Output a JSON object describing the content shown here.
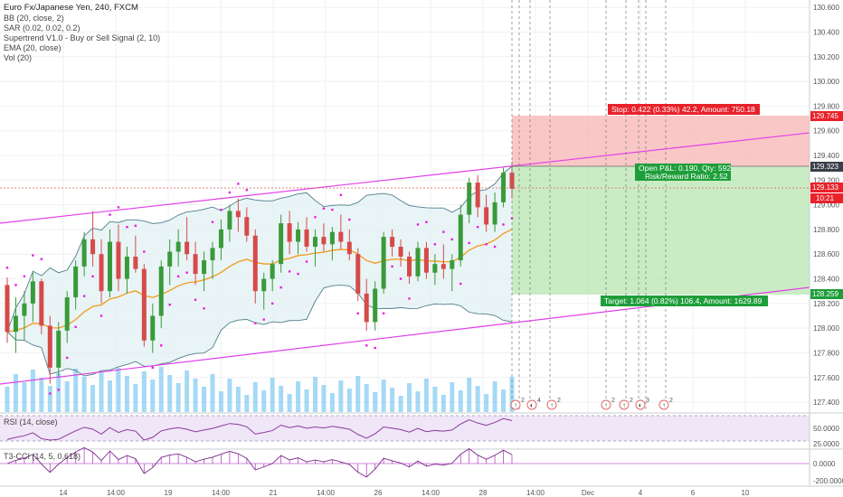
{
  "header": {
    "symbol_line": "Euro Fx/Japanese Yen, 240, FXCM",
    "indicators": [
      "BB (20, close, 2)",
      "SAR (0.02, 0.02, 0.2)",
      "Supertrend V1.0 - Buy or Sell Signal (2, 10)",
      "EMA (20, close)",
      "Vol (20)"
    ]
  },
  "colors": {
    "up": "#3a9a3a",
    "down": "#d64a4a",
    "bb": "#4f7f8a",
    "ema": "#f29a1a",
    "sar": "#e81ee0",
    "channel": "#e040e8",
    "stop_zone": "#f8b4b4",
    "target_zone": "#b8e6b0",
    "volume": "#8fd0f2",
    "grid": "#eef0f3"
  },
  "price_axis": {
    "ticks": [
      "130.600",
      "130.400",
      "130.200",
      "130.000",
      "129.800",
      "129.600",
      "129.400",
      "129.200",
      "129.000",
      "128.800",
      "128.600",
      "128.400",
      "128.200",
      "128.000",
      "127.800",
      "127.600",
      "127.400"
    ],
    "badges": {
      "stop": "129.745",
      "entry": "129.323",
      "last": "129.133",
      "timer": "10:21",
      "target": "128.259"
    }
  },
  "time_axis": [
    "14",
    "14:00",
    "19",
    "14:00",
    "21",
    "14:00",
    "26",
    "14:00",
    "28",
    "14:00",
    "Dec",
    "4",
    "6",
    "10"
  ],
  "position": {
    "stop_label": "Stop: 0.422 (0.33%) 42.2, Amount: 750.18",
    "open_pl_label": "Open P&L: 0.190, Qty: 592",
    "risk_reward_label": "Risk/Reward Ratio: 2.52",
    "target_label": "Target: 1.064 (0.82%) 106.4, Amount: 1629.89"
  },
  "events": [
    {
      "mark": "↑",
      "count": "2"
    },
    {
      "mark": "◐",
      "count": "4"
    },
    {
      "mark": "↑",
      "count": "2"
    },
    {
      "mark": "↑",
      "count": "2"
    },
    {
      "mark": "↑",
      "count": "2"
    },
    {
      "mark": "◐",
      "count": "3"
    },
    {
      "mark": "↑",
      "count": "2"
    }
  ],
  "rsi": {
    "label": "RSI (14, close)",
    "ticks": [
      "50.0000",
      "25.0000"
    ]
  },
  "cci": {
    "label": "T3-CCI (14, 5, 0.618)",
    "ticks": [
      "0.0000",
      "-200.0000"
    ]
  },
  "chart_data": {
    "type": "candlestick",
    "symbol": "Euro Fx/Japanese Yen",
    "interval": "240",
    "ylim": [
      127.32,
      130.66
    ],
    "ohlc": [
      [
        128.35,
        128.41,
        127.88,
        127.97
      ],
      [
        127.97,
        128.25,
        127.8,
        128.1
      ],
      [
        128.1,
        128.3,
        127.9,
        128.2
      ],
      [
        128.2,
        128.45,
        128.05,
        128.38
      ],
      [
        128.38,
        128.4,
        127.95,
        128.02
      ],
      [
        128.02,
        128.1,
        127.55,
        127.68
      ],
      [
        127.68,
        128.05,
        127.6,
        127.98
      ],
      [
        127.98,
        128.3,
        127.88,
        128.25
      ],
      [
        128.25,
        128.55,
        128.15,
        128.5
      ],
      [
        128.5,
        128.78,
        128.42,
        128.72
      ],
      [
        128.72,
        128.95,
        128.5,
        128.6
      ],
      [
        128.6,
        128.72,
        128.2,
        128.3
      ],
      [
        128.3,
        128.8,
        128.25,
        128.7
      ],
      [
        128.7,
        128.84,
        128.3,
        128.4
      ],
      [
        128.4,
        128.66,
        128.28,
        128.58
      ],
      [
        128.58,
        128.75,
        128.45,
        128.48
      ],
      [
        128.48,
        128.52,
        127.85,
        127.9
      ],
      [
        127.9,
        128.2,
        127.8,
        128.1
      ],
      [
        128.1,
        128.55,
        128.0,
        128.5
      ],
      [
        128.5,
        128.72,
        128.35,
        128.62
      ],
      [
        128.62,
        128.8,
        128.5,
        128.7
      ],
      [
        128.7,
        128.9,
        128.55,
        128.6
      ],
      [
        128.6,
        128.7,
        128.35,
        128.44
      ],
      [
        128.44,
        128.62,
        128.3,
        128.55
      ],
      [
        128.55,
        128.7,
        128.4,
        128.65
      ],
      [
        128.65,
        128.88,
        128.55,
        128.8
      ],
      [
        128.8,
        129.0,
        128.7,
        128.95
      ],
      [
        128.95,
        129.05,
        128.78,
        128.9
      ],
      [
        128.9,
        128.98,
        128.7,
        128.75
      ],
      [
        128.75,
        128.8,
        128.2,
        128.3
      ],
      [
        128.3,
        128.45,
        128.15,
        128.4
      ],
      [
        128.4,
        128.55,
        128.3,
        128.52
      ],
      [
        128.52,
        128.92,
        128.45,
        128.85
      ],
      [
        128.85,
        128.95,
        128.6,
        128.7
      ],
      [
        128.7,
        128.86,
        128.6,
        128.8
      ],
      [
        128.8,
        128.9,
        128.62,
        128.66
      ],
      [
        128.66,
        128.8,
        128.5,
        128.74
      ],
      [
        128.74,
        128.85,
        128.62,
        128.68
      ],
      [
        128.68,
        128.82,
        128.55,
        128.78
      ],
      [
        128.78,
        128.92,
        128.64,
        128.7
      ],
      [
        128.7,
        128.8,
        128.55,
        128.6
      ],
      [
        128.6,
        128.65,
        128.22,
        128.28
      ],
      [
        128.28,
        128.4,
        127.98,
        128.05
      ],
      [
        128.05,
        128.38,
        127.98,
        128.32
      ],
      [
        128.32,
        128.78,
        128.28,
        128.74
      ],
      [
        128.74,
        128.8,
        128.58,
        128.66
      ],
      [
        128.66,
        128.72,
        128.5,
        128.58
      ],
      [
        128.58,
        128.62,
        128.36,
        128.42
      ],
      [
        128.42,
        128.7,
        128.38,
        128.65
      ],
      [
        128.65,
        128.7,
        128.4,
        128.45
      ],
      [
        128.45,
        128.6,
        128.35,
        128.52
      ],
      [
        128.52,
        128.68,
        128.4,
        128.48
      ],
      [
        128.48,
        128.6,
        128.3,
        128.55
      ],
      [
        128.55,
        129.0,
        128.5,
        128.92
      ],
      [
        128.92,
        129.22,
        128.85,
        129.18
      ],
      [
        129.18,
        129.24,
        128.9,
        128.98
      ],
      [
        128.98,
        129.08,
        128.78,
        128.84
      ],
      [
        128.84,
        129.1,
        128.78,
        129.02
      ],
      [
        129.02,
        129.3,
        128.98,
        129.26
      ],
      [
        129.26,
        129.35,
        129.05,
        129.13
      ]
    ]
  }
}
